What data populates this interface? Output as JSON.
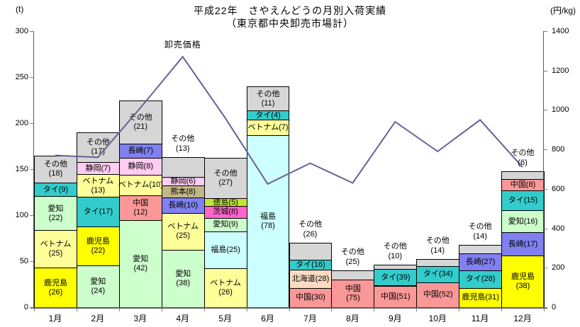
{
  "page": {
    "title_line1": "平成22年　さやえんどうの月別入荷実績",
    "title_line2": "（東京都中央卸売市場計）",
    "left_axis_unit": "(t)",
    "right_axis_unit": "(円/kg)"
  },
  "chart_data": {
    "type": "combo: stacked-bar (tonnage, left axis) + line (price, right axis)",
    "title": "平成22年　さやえんどうの月別入荷実績（東京都中央卸売市場計）",
    "grid": "off",
    "legend_position": "none (line labelled in plot)",
    "categories": [
      "1月",
      "2月",
      "3月",
      "4月",
      "5月",
      "6月",
      "7月",
      "8月",
      "9月",
      "10月",
      "11月",
      "12月"
    ],
    "left_axis": {
      "unit": "(t)",
      "min": 0,
      "max": 300,
      "ticks": [
        0,
        50,
        100,
        150,
        200,
        250,
        300
      ]
    },
    "right_axis": {
      "unit": "(円/kg)",
      "min": 0,
      "max": 1400,
      "ticks": [
        0,
        200,
        400,
        600,
        800,
        1000,
        1200,
        1400
      ]
    },
    "bars": {
      "value_meaning": "segment numbers in parentheses are percent shares; total_t estimated from bar height (t)",
      "months": [
        {
          "month": "1月",
          "total_t": 165,
          "segments": [
            {
              "name": "鹿児島",
              "pct": 26,
              "label_style": "two"
            },
            {
              "name": "ベトナム",
              "pct": 25,
              "label_style": "two"
            },
            {
              "name": "愛知",
              "pct": 22,
              "label_style": "two"
            },
            {
              "name": "タイ",
              "pct": 9,
              "label_style": "one"
            },
            {
              "name": "その他",
              "pct": 18,
              "label_style": "two"
            }
          ]
        },
        {
          "month": "2月",
          "total_t": 190,
          "segments": [
            {
              "name": "愛知",
              "pct": 24,
              "label_style": "two"
            },
            {
              "name": "鹿児島",
              "pct": 22,
              "label_style": "two"
            },
            {
              "name": "タイ",
              "pct": 17,
              "label_style": "one"
            },
            {
              "name": "ベトナム",
              "pct": 13,
              "label_style": "two"
            },
            {
              "name": "静岡",
              "pct": 7,
              "label_style": "one"
            },
            {
              "name": "その他",
              "pct": 17,
              "label_style": "two"
            }
          ]
        },
        {
          "month": "3月",
          "total_t": 225,
          "segments": [
            {
              "name": "愛知",
              "pct": 42,
              "label_style": "two"
            },
            {
              "name": "中国",
              "pct": 12,
              "label_style": "two"
            },
            {
              "name": "ベトナム",
              "pct": 10,
              "label_style": "one"
            },
            {
              "name": "静岡",
              "pct": 8,
              "label_style": "one"
            },
            {
              "name": "長崎",
              "pct": 7,
              "label_style": "one"
            },
            {
              "name": "その他",
              "pct": 21,
              "label_style": "two"
            }
          ]
        },
        {
          "month": "4月",
          "total_t": 163,
          "segments": [
            {
              "name": "愛知",
              "pct": 38,
              "label_style": "two"
            },
            {
              "name": "ベトナム",
              "pct": 25,
              "label_style": "two"
            },
            {
              "name": "長崎",
              "pct": 10,
              "label_style": "one"
            },
            {
              "name": "熊本",
              "pct": 8,
              "label_style": "one"
            },
            {
              "name": "静岡",
              "pct": 6,
              "label_style": "one"
            },
            {
              "name": "その他",
              "pct": 13,
              "label_style": "above"
            }
          ]
        },
        {
          "month": "5月",
          "total_t": 162,
          "segments": [
            {
              "name": "ベトナム",
              "pct": 26,
              "label_style": "two"
            },
            {
              "name": "福島",
              "pct": 25,
              "label_style": "one"
            },
            {
              "name": "愛知",
              "pct": 9,
              "label_style": "one"
            },
            {
              "name": "茨城",
              "pct": 8,
              "label_style": "one"
            },
            {
              "name": "徳島",
              "pct": 5,
              "label_style": "one"
            },
            {
              "name": "その他",
              "pct": 27,
              "label_style": "two"
            }
          ]
        },
        {
          "month": "6月",
          "total_t": 240,
          "segments": [
            {
              "name": "福島",
              "pct": 78,
              "label_style": "two"
            },
            {
              "name": "ベトナム",
              "pct": 7,
              "label_style": "one"
            },
            {
              "name": "タイ",
              "pct": 4,
              "label_style": "one"
            },
            {
              "name": "その他",
              "pct": 11,
              "label_style": "two"
            }
          ]
        },
        {
          "month": "7月",
          "total_t": 70,
          "segments": [
            {
              "name": "中国",
              "pct": 30,
              "label_style": "one"
            },
            {
              "name": "北海道",
              "pct": 28,
              "label_style": "one"
            },
            {
              "name": "タイ",
              "pct": 16,
              "label_style": "one"
            },
            {
              "name": "その他",
              "pct": 26,
              "label_style": "above"
            }
          ]
        },
        {
          "month": "8月",
          "total_t": 40,
          "segments": [
            {
              "name": "中国",
              "pct": 75,
              "label_style": "two"
            },
            {
              "name": "その他",
              "pct": 25,
              "label_style": "above"
            }
          ]
        },
        {
          "month": "9月",
          "total_t": 46,
          "segments": [
            {
              "name": "中国",
              "pct": 51,
              "label_style": "one"
            },
            {
              "name": "タイ",
              "pct": 39,
              "label_style": "one"
            },
            {
              "name": "その他",
              "pct": 10,
              "label_style": "above"
            }
          ]
        },
        {
          "month": "10月",
          "total_t": 52,
          "segments": [
            {
              "name": "中国",
              "pct": 52,
              "label_style": "one"
            },
            {
              "name": "タイ",
              "pct": 34,
              "label_style": "one"
            },
            {
              "name": "その他",
              "pct": 14,
              "label_style": "above"
            }
          ]
        },
        {
          "month": "11月",
          "total_t": 68,
          "segments": [
            {
              "name": "鹿児島",
              "pct": 31,
              "label_style": "one"
            },
            {
              "name": "タイ",
              "pct": 28,
              "label_style": "one"
            },
            {
              "name": "長崎",
              "pct": 27,
              "label_style": "one"
            },
            {
              "name": "その他",
              "pct": 14,
              "label_style": "above"
            }
          ]
        },
        {
          "month": "12月",
          "total_t": 148,
          "segments": [
            {
              "name": "鹿児島",
              "pct": 38,
              "label_style": "two"
            },
            {
              "name": "長崎",
              "pct": 17,
              "label_style": "one"
            },
            {
              "name": "愛知",
              "pct": 16,
              "label_style": "one"
            },
            {
              "name": "タイ",
              "pct": 15,
              "label_style": "one"
            },
            {
              "name": "中国",
              "pct": 8,
              "label_style": "one"
            },
            {
              "name": "その他",
              "pct": 6,
              "label_style": "above"
            }
          ]
        }
      ]
    },
    "line": {
      "name": "卸売価格",
      "values_yen_per_kg": [
        770,
        760,
        1010,
        1270,
        960,
        625,
        730,
        630,
        940,
        790,
        950,
        710
      ]
    },
    "region_colors": {
      "鹿児島": "#FFFF00",
      "ベトナム": "#FFFF99",
      "愛知": "#CCFFCC",
      "タイ": "#33CCCC",
      "その他": "#D6D6D6",
      "静岡": "#FFCCF2",
      "中国": "#FA9898",
      "長崎": "#8080F0",
      "熊本": "#C2B887",
      "福島": "#CCFFFF",
      "徳島": "#C2E636",
      "茨城": "#FF66CC",
      "北海道": "#FBDCC2"
    },
    "line_color": "#6B5F97"
  }
}
